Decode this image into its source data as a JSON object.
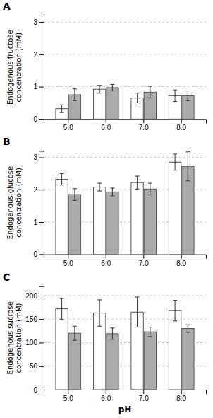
{
  "chart_data": [
    {
      "type": "bar",
      "title": "A",
      "ylabel": "Endogenous fructose\nconcentration (mM)",
      "categories": [
        "5.0",
        "6.0",
        "7.0",
        "8.0"
      ],
      "series": [
        {
          "color": "#ffffff",
          "values": [
            0.32,
            0.92,
            0.65,
            0.72
          ],
          "errors": [
            0.12,
            0.12,
            0.15,
            0.18
          ]
        },
        {
          "color": "#aaaaaa",
          "values": [
            0.75,
            0.97,
            0.83,
            0.72
          ],
          "errors": [
            0.18,
            0.1,
            0.18,
            0.15
          ]
        }
      ],
      "ylim": [
        0,
        3.2
      ],
      "yticks": [
        0,
        1,
        2,
        3
      ],
      "grid": true
    },
    {
      "type": "bar",
      "title": "B",
      "ylabel": "Endogenous glucose\nconcentration (mM)",
      "categories": [
        "5.0",
        "6.0",
        "7.0",
        "8.0"
      ],
      "series": [
        {
          "color": "#ffffff",
          "values": [
            2.32,
            2.08,
            2.22,
            2.85
          ],
          "errors": [
            0.18,
            0.12,
            0.2,
            0.25
          ]
        },
        {
          "color": "#aaaaaa",
          "values": [
            1.85,
            1.93,
            2.02,
            2.72
          ],
          "errors": [
            0.18,
            0.12,
            0.18,
            0.45
          ]
        }
      ],
      "ylim": [
        0,
        3.2
      ],
      "yticks": [
        0,
        1,
        2,
        3
      ],
      "grid": true
    },
    {
      "type": "bar",
      "title": "C",
      "ylabel": "Endogenous sucrose\nconcentration (mM)",
      "xlabel": "pH",
      "categories": [
        "5.0",
        "6.0",
        "7.0",
        "8.0"
      ],
      "series": [
        {
          "color": "#ffffff",
          "values": [
            172,
            163,
            165,
            168
          ],
          "errors": [
            22,
            28,
            32,
            22
          ]
        },
        {
          "color": "#aaaaaa",
          "values": [
            120,
            119,
            123,
            130
          ],
          "errors": [
            15,
            12,
            10,
            8
          ]
        }
      ],
      "ylim": [
        0,
        220
      ],
      "yticks": [
        0,
        50,
        100,
        150,
        200
      ],
      "grid": true
    }
  ]
}
